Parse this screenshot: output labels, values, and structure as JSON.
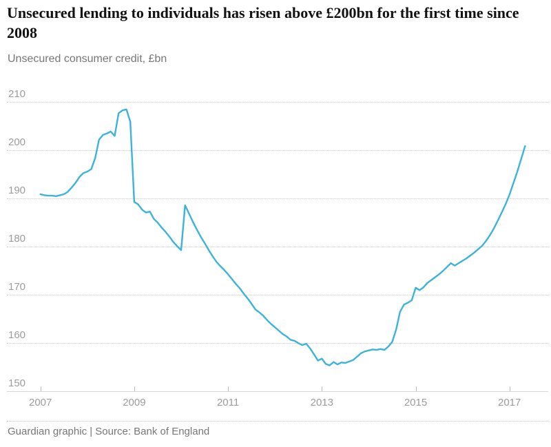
{
  "header": {
    "title": "Unsecured lending to individuals has risen above £200bn for the first time since 2008",
    "subtitle": "Unsecured consumer credit, £bn"
  },
  "footer": {
    "credit": "Guardian graphic | Source: Bank of England"
  },
  "colors": {
    "line": "#3bb3dc",
    "grid": "#cdcdcd",
    "axis": "#d6d6d6",
    "tick_label": "#9b9b9b",
    "muted_text": "#767676",
    "title_text": "#121212"
  },
  "chart_data": {
    "type": "line",
    "title": "Unsecured lending to individuals has risen above £200bn for the first time since 2008",
    "subtitle": "Unsecured consumer credit, £bn",
    "xlabel": "",
    "ylabel": "Unsecured consumer credit, £bn",
    "x_start": "2007-01",
    "frequency": "monthly",
    "x_tick_years": [
      2007,
      2009,
      2011,
      2013,
      2015,
      2017
    ],
    "y_ticks": [
      210,
      200,
      190,
      180,
      170,
      160,
      150
    ],
    "ylim": [
      150,
      212
    ],
    "grid": "horizontal-dotted",
    "legend_position": "none",
    "series": [
      {
        "name": "Unsecured consumer credit (£bn)",
        "values": [
          190.9,
          190.7,
          190.6,
          190.6,
          190.5,
          190.7,
          190.9,
          191.4,
          192.3,
          193.3,
          194.5,
          195.3,
          195.6,
          196.1,
          198.4,
          202.2,
          203.2,
          203.5,
          203.9,
          203.0,
          207.7,
          208.3,
          208.5,
          205.9,
          189.3,
          188.8,
          187.7,
          187.1,
          187.3,
          185.8,
          185.0,
          184.0,
          183.1,
          182.1,
          181.0,
          180.1,
          179.3,
          188.6,
          186.9,
          185.2,
          183.6,
          182.1,
          180.8,
          179.4,
          178.1,
          176.9,
          176.0,
          175.2,
          174.3,
          173.3,
          172.3,
          171.4,
          170.3,
          169.3,
          168.2,
          167.0,
          166.4,
          165.7,
          164.8,
          164.0,
          163.3,
          162.6,
          161.9,
          161.4,
          160.7,
          160.5,
          160.0,
          159.6,
          159.9,
          158.9,
          157.7,
          156.4,
          156.8,
          155.7,
          155.4,
          156.1,
          155.6,
          156.0,
          155.9,
          156.2,
          156.5,
          157.2,
          157.9,
          158.3,
          158.5,
          158.7,
          158.6,
          158.8,
          158.6,
          159.3,
          160.3,
          162.8,
          166.5,
          168.0,
          168.4,
          168.9,
          171.5,
          171.0,
          171.6,
          172.5,
          173.1,
          173.7,
          174.3,
          175.0,
          175.8,
          176.6,
          176.1,
          176.6,
          177.1,
          177.6,
          178.2,
          178.8,
          179.5,
          180.2,
          181.2,
          182.4,
          183.8,
          185.4,
          187.1,
          188.8,
          190.8,
          193.2,
          195.6,
          198.2,
          200.9
        ]
      }
    ]
  }
}
